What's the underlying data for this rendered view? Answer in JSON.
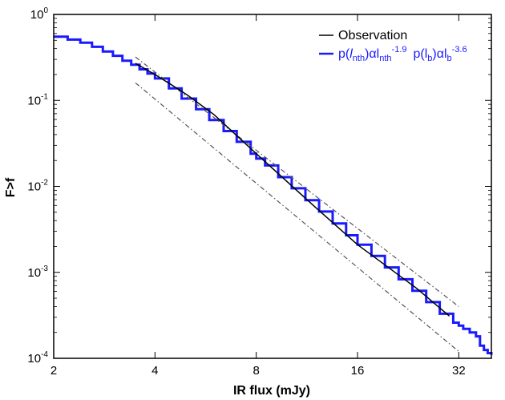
{
  "chart_data": {
    "type": "line",
    "title": "",
    "xlabel": "IR flux (mJy)",
    "ylabel": "F>f",
    "xscale": "log2",
    "yscale": "log10",
    "xlim": [
      2,
      40
    ],
    "ylim": [
      0.0001,
      1
    ],
    "x_ticks": [
      "2",
      "4",
      "8",
      "16",
      "32"
    ],
    "y_tick_base": "10",
    "y_tick_exponents": [
      "0",
      "-1",
      "-2",
      "-3",
      "-4"
    ],
    "grid": false,
    "legend_position": "top-right",
    "legend": {
      "observation": {
        "label": "Observation",
        "color": "#000000"
      },
      "model": {
        "prefix": "p(",
        "nth_sym": "l",
        "nth_sub": "nth",
        "alpha": ")αl",
        "nth_sub2": "nth",
        "nth_exp": "-1.9",
        "b_prefix": "p(l",
        "b_sub": "b",
        "b_alpha": ")αl",
        "b_sub2": "b",
        "b_exp": "-3.6",
        "color": "#1a1aff"
      }
    },
    "series": [
      {
        "key": "model",
        "color": "#1a1aff",
        "x": [
          2.0,
          2.2,
          2.4,
          2.6,
          2.8,
          3.0,
          3.2,
          3.4,
          3.6,
          3.8,
          4.0,
          4.4,
          4.8,
          5.3,
          5.8,
          6.4,
          7.0,
          7.7,
          8.0,
          8.5,
          9.3,
          10.2,
          11.2,
          12.3,
          13.5,
          14.8,
          16.0,
          17.6,
          19.3,
          21.2,
          23.3,
          25.6,
          28.1,
          30.8,
          32.0,
          33.0,
          34.5,
          36.0,
          37.0,
          38.0,
          39.0,
          40.0
        ],
        "y": [
          0.55,
          0.51,
          0.47,
          0.42,
          0.37,
          0.33,
          0.29,
          0.26,
          0.23,
          0.205,
          0.18,
          0.138,
          0.105,
          0.079,
          0.059,
          0.044,
          0.033,
          0.024,
          0.021,
          0.0175,
          0.0128,
          0.0095,
          0.0069,
          0.0051,
          0.0037,
          0.0027,
          0.0021,
          0.00155,
          0.00114,
          0.00083,
          0.00061,
          0.00045,
          0.00033,
          0.00026,
          0.00024,
          0.00022,
          0.0002,
          0.00018,
          0.00014,
          0.000125,
          0.000115,
          0.00011
        ]
      },
      {
        "key": "observation",
        "color": "#000000",
        "x": [
          3.5,
          4.0,
          4.5,
          5.0,
          6.0,
          8.0,
          12.0,
          16.0,
          24.0,
          30.0
        ],
        "y": [
          0.27,
          0.2,
          0.15,
          0.115,
          0.068,
          0.024,
          0.0057,
          0.0021,
          0.00065,
          0.00031
        ]
      },
      {
        "key": "upper-bound",
        "style": "dash-dot",
        "color": "#555555",
        "x": [
          3.5,
          32.0
        ],
        "y": [
          0.32,
          0.0004
        ]
      },
      {
        "key": "lower-bound",
        "style": "dash-dot",
        "color": "#555555",
        "x": [
          3.5,
          32.0
        ],
        "y": [
          0.16,
          0.00012
        ]
      }
    ]
  }
}
